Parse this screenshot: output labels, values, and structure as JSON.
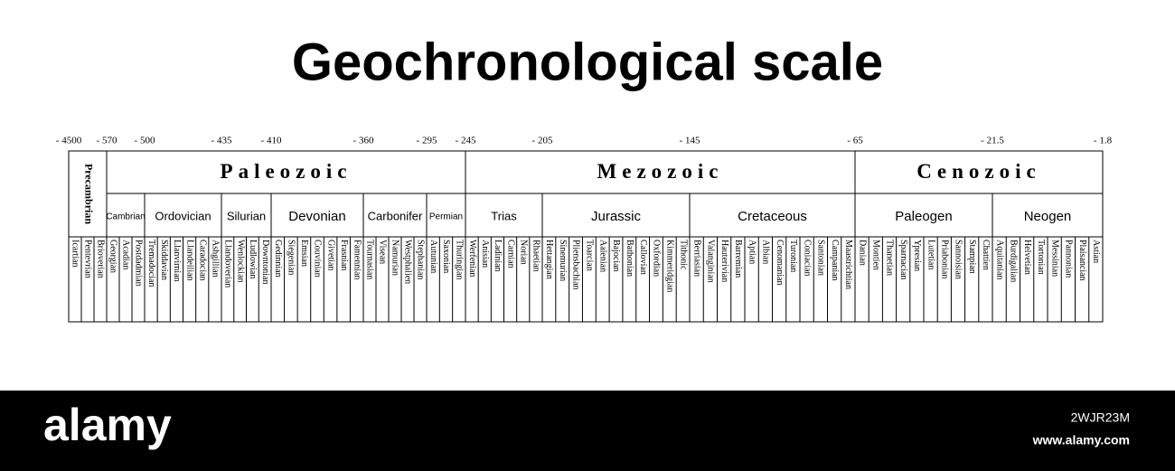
{
  "title": "Geochronological scale",
  "time_markers": [
    "- 4500",
    "- 570",
    "- 500",
    "- 435",
    "- 410",
    "- 360",
    "- 295",
    "- 245",
    "- 205",
    "- 145",
    "- 65",
    "- 21.5",
    "- 1.8"
  ],
  "eras": [
    {
      "name": "Precambrian",
      "periods": [
        {
          "stages": [
            "Icartian",
            "Pentevrian",
            "Brioverian"
          ]
        }
      ]
    },
    {
      "name": "Paleozoic",
      "periods": [
        {
          "name": "Cambrian",
          "stages": [
            "Georgian",
            "Acadian",
            "Postdadmian"
          ]
        },
        {
          "name": "Ordovician",
          "stages": [
            "Tremadocian",
            "Skiddavian",
            "Llanvirnian",
            "Llandeilian",
            "Caradocian",
            "Ashgillian"
          ]
        },
        {
          "name": "Silurian",
          "stages": [
            "Llandoverian",
            "Wenlockian",
            "Ludlowian",
            "Downtonian"
          ]
        },
        {
          "name": "Devonian",
          "stages": [
            "Gedinnian",
            "Siegenian",
            "Emsian",
            "Couvinian",
            "Givetian",
            "Frasnian",
            "Famennian"
          ]
        },
        {
          "name": "Carbonifer",
          "stages": [
            "Tournasian",
            "Visean",
            "Namurian",
            "Westphalien",
            "Stephanian"
          ]
        },
        {
          "name": "Permian",
          "stages": [
            "Autunian",
            "Saxonian",
            "Thuringian"
          ]
        }
      ]
    },
    {
      "name": "Mezozoic",
      "periods": [
        {
          "name": "Trias",
          "stages": [
            "Werfenian",
            "Anisian",
            "Ladinian",
            "Carnian",
            "Norian",
            "Rhaetian"
          ]
        },
        {
          "name": "Jurassic",
          "stages": [
            "Hettangian",
            "Sinemurian",
            "Pliensbachian",
            "Toarcian",
            "Aalenian",
            "Bajocian",
            "Bathonian",
            "Callovian",
            "Oxfordian",
            "Kimmeridgian",
            "Tithonic"
          ]
        },
        {
          "name": "Cretaceous",
          "stages": [
            "Berriasian",
            "Valanginian",
            "Hauterivian",
            "Barremian",
            "Aptian",
            "Albian",
            "Cenomanian",
            "Turonian",
            "Coniacian",
            "Santonian",
            "Campanian",
            "Maastrichtian"
          ]
        }
      ]
    },
    {
      "name": "Cenozoic",
      "periods": [
        {
          "name": "Paleogen",
          "stages": [
            "Danian",
            "Montien",
            "Thanetian",
            "Sparnacian",
            "Ypresian",
            "Lutetian",
            "Priabonian",
            "Sannoisian",
            "Stampian",
            "Chattien"
          ]
        },
        {
          "name": "Neogen",
          "stages": [
            "Aquitanian",
            "Burdigalian",
            "Helvetian",
            "Tortonian",
            "Messinian",
            "Pannonian",
            "Plaisancian",
            "Astian"
          ]
        }
      ]
    }
  ],
  "watermark": {
    "logo": "alamy",
    "image_id": "2WJR23M",
    "url": "www.alamy.com"
  }
}
